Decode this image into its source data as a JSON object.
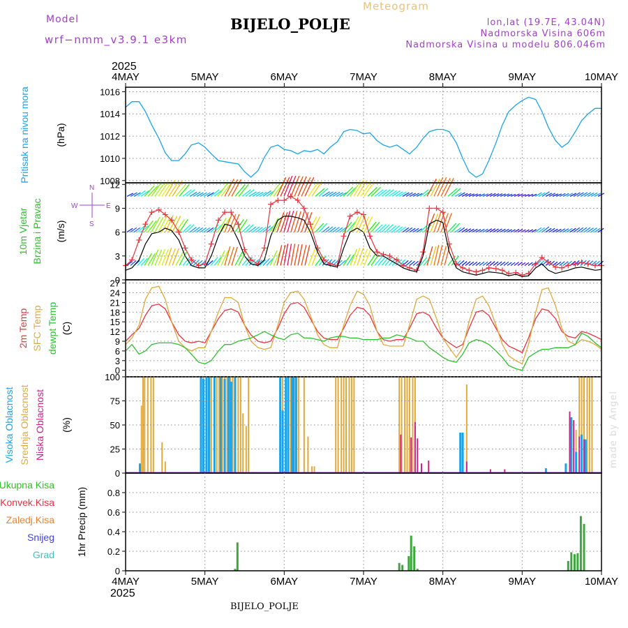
{
  "header": {
    "title": "BIJELO_POLJE",
    "model_label": "Model",
    "model_name": "wrf−nmm_v3.9.1  e3km",
    "meteogram_label": "Meteogram",
    "lonlat": "lon,lat (19.7E, 43.04N)",
    "altitude": "Nadmorska Visina 606m",
    "model_altitude": "Nadmorska Visina u modelu 806.046m"
  },
  "footer": {
    "station": "BIJELO_POLJE",
    "credit": "made by Angel"
  },
  "colors": {
    "pressure": "#1aa3e8",
    "wind_speed": "#000000",
    "gust": "#e8323c",
    "temp2m": "#e8323c",
    "sfc_temp": "#e0a93a",
    "dewpoint": "#2cc02c",
    "high_cloud": "#1aa3e8",
    "mid_cloud": "#e0a93a",
    "low_cloud": "#d0208c",
    "total_precip": "#3ca83c",
    "snow": "#4040e0",
    "grid": "#8a8a8a"
  },
  "x_axis": {
    "top_year": "2025",
    "bottom_year": "2025",
    "day_labels": [
      "4MAY",
      "5MAY",
      "6MAY",
      "7MAY",
      "8MAY",
      "9MAY",
      "10MAY"
    ]
  },
  "chart_data": [
    {
      "type": "line",
      "id": "pressure",
      "ylabel_lines": [
        "Pritisak na nivou mora"
      ],
      "unit": "(hPa)",
      "ylim": [
        1007.8,
        1016.4
      ],
      "yticks": [
        1008,
        1010,
        1012,
        1014,
        1016
      ],
      "x_days": [
        0,
        0.08,
        0.17,
        0.25,
        0.33,
        0.42,
        0.5,
        0.58,
        0.67,
        0.75,
        0.83,
        0.92,
        1,
        1.08,
        1.17,
        1.25,
        1.33,
        1.42,
        1.5,
        1.58,
        1.67,
        1.75,
        1.83,
        1.92,
        2,
        2.08,
        2.17,
        2.25,
        2.33,
        2.42,
        2.5,
        2.58,
        2.67,
        2.75,
        2.83,
        2.92,
        3,
        3.08,
        3.17,
        3.25,
        3.33,
        3.42,
        3.5,
        3.58,
        3.67,
        3.75,
        3.83,
        3.92,
        4,
        4.08,
        4.17,
        4.25,
        4.33,
        4.42,
        4.5,
        4.58,
        4.67,
        4.75,
        4.83,
        4.92,
        5,
        5.08,
        5.17,
        5.25,
        5.33,
        5.42,
        5.5,
        5.58,
        5.67,
        5.75,
        5.83,
        5.92,
        6
      ],
      "values": [
        1014.6,
        1015.1,
        1015.1,
        1014.2,
        1013.0,
        1011.8,
        1010.5,
        1009.8,
        1009.8,
        1010.4,
        1011.2,
        1011.4,
        1011.0,
        1010.4,
        1009.8,
        1009.7,
        1009.6,
        1009.5,
        1008.8,
        1008.3,
        1008.9,
        1010.1,
        1011.0,
        1011.2,
        1010.8,
        1010.7,
        1010.4,
        1010.7,
        1010.6,
        1010.8,
        1010.4,
        1011.0,
        1011.5,
        1012.4,
        1012.6,
        1012.5,
        1012.2,
        1012.3,
        1011.6,
        1011.2,
        1011.0,
        1011.2,
        1010.8,
        1010.4,
        1011.0,
        1011.8,
        1012.4,
        1012.6,
        1012.6,
        1012.4,
        1011.4,
        1010.0,
        1008.8,
        1008.3,
        1008.6,
        1009.8,
        1011.4,
        1013.0,
        1014.2,
        1014.8,
        1015.2,
        1015.5,
        1015.3,
        1014.2,
        1012.8,
        1011.6,
        1011.0,
        1011.4,
        1012.4,
        1013.4,
        1014.0,
        1014.5,
        1014.5
      ]
    },
    {
      "type": "line",
      "id": "wind",
      "ylabel_lines": [
        "10m Vjetar",
        "Brzina i Pravac"
      ],
      "unit": "(m/s)",
      "ylim": [
        0,
        12.2
      ],
      "yticks": [
        0,
        3,
        6,
        9,
        12
      ],
      "compass": {
        "n": "N",
        "s": "S",
        "e": "E",
        "w": "W"
      },
      "x_days": [
        0,
        0.08,
        0.17,
        0.25,
        0.33,
        0.42,
        0.5,
        0.58,
        0.67,
        0.75,
        0.83,
        0.92,
        1,
        1.08,
        1.17,
        1.25,
        1.33,
        1.42,
        1.5,
        1.58,
        1.67,
        1.75,
        1.83,
        1.92,
        2,
        2.08,
        2.17,
        2.25,
        2.33,
        2.42,
        2.5,
        2.58,
        2.67,
        2.75,
        2.83,
        2.92,
        3,
        3.08,
        3.17,
        3.25,
        3.33,
        3.42,
        3.5,
        3.58,
        3.67,
        3.75,
        3.83,
        3.92,
        4,
        4.08,
        4.17,
        4.25,
        4.33,
        4.42,
        4.5,
        4.58,
        4.67,
        4.75,
        4.83,
        4.92,
        5,
        5.08,
        5.17,
        5.25,
        5.33,
        5.42,
        5.5,
        5.58,
        5.67,
        5.75,
        5.83,
        5.92,
        6
      ],
      "series": [
        {
          "name": "wind speed",
          "values": [
            1.2,
            1.5,
            2.5,
            4.5,
            5.8,
            6.0,
            6.5,
            6.2,
            5.0,
            3.0,
            1.8,
            1.5,
            1.5,
            3.0,
            5.5,
            7.0,
            6.8,
            5.0,
            3.0,
            2.0,
            1.8,
            2.5,
            5.5,
            7.5,
            8.0,
            8.0,
            7.8,
            7.5,
            6.0,
            3.5,
            2.0,
            1.8,
            1.6,
            4.0,
            6.0,
            6.5,
            6.0,
            4.0,
            3.0,
            3.0,
            2.5,
            2.0,
            1.5,
            1.2,
            1.0,
            3.0,
            7.0,
            7.5,
            7.2,
            3.5,
            1.5,
            1.0,
            0.8,
            0.6,
            0.8,
            1.0,
            0.9,
            0.8,
            0.5,
            0.7,
            0.4,
            0.5,
            1.5,
            2.0,
            1.2,
            0.8,
            1.0,
            1.2,
            1.5,
            1.6,
            1.4,
            1.2,
            1.3
          ]
        },
        {
          "name": "gust",
          "values": [
            1.8,
            2.5,
            5.0,
            7.0,
            8.5,
            8.8,
            8.2,
            7.5,
            6.0,
            4.0,
            2.5,
            1.8,
            2.0,
            4.5,
            7.5,
            8.5,
            8.5,
            7.0,
            3.8,
            2.5,
            2.0,
            4.0,
            9.5,
            10.0,
            10.0,
            10.5,
            10.0,
            9.0,
            7.0,
            4.0,
            2.5,
            2.0,
            1.8,
            5.5,
            8.0,
            8.5,
            8.2,
            5.5,
            3.5,
            3.2,
            3.0,
            2.5,
            1.8,
            1.5,
            1.2,
            3.5,
            9.0,
            9.0,
            8.5,
            4.5,
            2.0,
            1.5,
            1.2,
            1.0,
            1.2,
            1.5,
            1.4,
            1.2,
            0.8,
            0.9,
            0.6,
            0.8,
            2.0,
            2.8,
            2.2,
            1.6,
            1.5,
            1.8,
            2.0,
            2.2,
            2.0,
            1.8,
            1.8
          ]
        }
      ],
      "wind_barb_rows": [
        10.5,
        6.0,
        1.8
      ]
    },
    {
      "type": "line",
      "id": "temperature",
      "ylabel_lines": [
        "2m Temp",
        "SFC Temp",
        "dewpt Temp"
      ],
      "unit": "(C)",
      "ylim": [
        -2,
        28
      ],
      "yticks": [
        0,
        3,
        6,
        9,
        12,
        15,
        18,
        21,
        24,
        27
      ],
      "x_days": [
        0,
        0.08,
        0.17,
        0.25,
        0.33,
        0.42,
        0.5,
        0.58,
        0.67,
        0.75,
        0.83,
        0.92,
        1,
        1.08,
        1.17,
        1.25,
        1.33,
        1.42,
        1.5,
        1.58,
        1.67,
        1.75,
        1.83,
        1.92,
        2,
        2.08,
        2.17,
        2.25,
        2.33,
        2.42,
        2.5,
        2.58,
        2.67,
        2.75,
        2.83,
        2.92,
        3,
        3.08,
        3.17,
        3.25,
        3.33,
        3.42,
        3.5,
        3.58,
        3.67,
        3.75,
        3.83,
        3.92,
        4,
        4.08,
        4.17,
        4.25,
        4.33,
        4.42,
        4.5,
        4.58,
        4.67,
        4.75,
        4.83,
        4.92,
        5,
        5.08,
        5.17,
        5.25,
        5.33,
        5.42,
        5.5,
        5.58,
        5.67,
        5.75,
        5.83,
        5.92,
        6
      ],
      "series": [
        {
          "name": "2m Temp",
          "values": [
            9,
            11,
            13,
            17,
            20,
            20.5,
            19,
            15,
            11,
            9,
            8.5,
            9,
            8.5,
            12,
            16,
            18.5,
            19,
            18,
            14,
            11,
            9,
            8.5,
            9,
            13,
            17.5,
            20.5,
            21,
            19.5,
            16,
            12,
            10,
            9.5,
            9.5,
            13,
            17,
            19.5,
            19,
            17,
            12,
            9.5,
            9,
            9.5,
            9.5,
            13,
            17.5,
            18,
            17,
            13,
            10,
            8.5,
            7,
            8,
            13,
            18,
            18.5,
            17,
            13,
            9.5,
            7.5,
            6.5,
            5.5,
            10,
            16,
            19,
            18.5,
            16,
            12,
            10.5,
            10,
            12,
            11.5,
            10.5,
            9.5
          ]
        },
        {
          "name": "SFC Temp",
          "values": [
            8,
            10,
            14,
            22,
            25.5,
            26,
            22,
            15,
            9,
            7,
            6,
            7,
            7,
            12,
            18,
            22.5,
            22.5,
            21,
            14,
            9,
            7,
            6.5,
            7,
            14,
            21,
            24,
            24.5,
            22,
            17,
            11,
            8,
            7,
            7,
            14,
            20,
            24.5,
            23.5,
            20,
            12,
            8,
            7.5,
            7.5,
            7.5,
            14,
            22,
            23,
            22,
            16,
            10,
            7,
            4,
            7,
            15,
            22,
            23,
            20,
            14,
            8,
            4.5,
            3,
            2,
            8,
            18,
            25,
            25.5,
            20,
            13,
            9,
            8,
            9.5,
            9,
            8,
            6.5
          ]
        },
        {
          "name": "dewpt Temp",
          "values": [
            6,
            8,
            5,
            6,
            8,
            8.5,
            8.5,
            8.5,
            8,
            7,
            5,
            2.5,
            2,
            3,
            6,
            8,
            8,
            9,
            9.5,
            10,
            11,
            12,
            11,
            10,
            9.5,
            11,
            11.5,
            10,
            10,
            9.5,
            9,
            10,
            10.5,
            10.5,
            10,
            10,
            9.5,
            9.5,
            9.5,
            10,
            10,
            11,
            10.5,
            10,
            9,
            9,
            7,
            5.5,
            4,
            3,
            2.5,
            5,
            8.5,
            9.5,
            9,
            8,
            6,
            4,
            1.5,
            0.5,
            0,
            4,
            5.5,
            6.5,
            6.5,
            7,
            7,
            7,
            8,
            11.5,
            10.5,
            8.5,
            7
          ]
        }
      ]
    },
    {
      "type": "bar",
      "id": "cloud",
      "ylabel_lines": [
        "Visoka Oblacnost",
        "Srednja Oblacnost",
        "Niska Oblacnost"
      ],
      "unit": "(%)",
      "ylim": [
        0,
        100
      ],
      "yticks": [
        0,
        25,
        50,
        75,
        100
      ],
      "series": [
        {
          "name": "Srednja Oblacnost",
          "x_days": [
            0.2,
            0.22,
            0.24,
            0.28,
            0.32,
            0.35,
            0.46,
            0.5,
            0.95,
            0.98,
            1.02,
            1.06,
            1.08,
            1.12,
            1.15,
            1.18,
            1.22,
            1.25,
            1.28,
            1.32,
            1.35,
            1.42,
            1.45,
            1.48,
            1.52,
            1.55,
            1.95,
            1.98,
            2.02,
            2.05,
            2.08,
            2.12,
            2.15,
            2.18,
            2.25,
            2.3,
            2.35,
            2.38,
            2.65,
            2.68,
            2.72,
            2.75,
            2.78,
            2.82,
            2.85,
            2.88,
            3.45,
            3.48,
            3.52,
            3.55,
            3.58,
            3.62,
            3.65,
            4.25,
            4.3,
            5.62,
            5.68,
            5.72,
            5.75,
            5.78,
            5.82,
            5.85,
            5.88
          ],
          "values": [
            70,
            100,
            100,
            100,
            100,
            100,
            32,
            12,
            100,
            100,
            100,
            100,
            100,
            100,
            100,
            100,
            100,
            100,
            100,
            100,
            100,
            100,
            100,
            62,
            49,
            100,
            100,
            100,
            100,
            100,
            100,
            100,
            100,
            100,
            100,
            38,
            7,
            7,
            100,
            100,
            100,
            100,
            100,
            100,
            100,
            100,
            100,
            100,
            100,
            100,
            100,
            100,
            100,
            36,
            92,
            50,
            45,
            100,
            100,
            100,
            100,
            100,
            100
          ]
        },
        {
          "name": "Visoka Oblacnost",
          "x_days": [
            0.18,
            0.95,
            0.98,
            1.02,
            1.05,
            1.12,
            1.2,
            1.25,
            1.3,
            1.33,
            1.38,
            1.95,
            1.98,
            2.02,
            2.05,
            2.1,
            2.12,
            2.15,
            4.22,
            4.25,
            5.3,
            5.55,
            5.62,
            5.68,
            5.75,
            5.8
          ],
          "values": [
            10,
            100,
            98,
            100,
            100,
            100,
            100,
            98,
            100,
            95,
            100,
            100,
            65,
            100,
            100,
            100,
            100,
            100,
            42,
            42,
            5,
            10,
            58,
            22,
            40,
            35
          ]
        },
        {
          "name": "Niska Oblacnost",
          "x_days": [
            3.47,
            3.6,
            3.65,
            3.68,
            3.73,
            3.82,
            4.3,
            4.6,
            4.78,
            5.6,
            5.65,
            5.72,
            5.78
          ],
          "values": [
            40,
            37,
            53,
            36,
            10,
            13,
            12,
            4,
            4,
            64,
            55,
            38,
            35
          ]
        }
      ]
    },
    {
      "type": "bar",
      "id": "precip",
      "ylabel_lines": [
        "Ukupna Kisa",
        "Konvek.Kisa",
        "Zaledj.Kisa",
        "Snijeg",
        "Grad"
      ],
      "unit": "1hr Precip (mm)",
      "ylim": [
        0,
        1.0
      ],
      "yticks": [
        0,
        0.2,
        0.4,
        0.6,
        0.8
      ],
      "series": [
        {
          "name": "Ukupna Kisa",
          "x_days": [
            1.38,
            1.41,
            3.45,
            3.49,
            3.57,
            3.6,
            3.64,
            3.68,
            5.58,
            5.62,
            5.66,
            5.7,
            5.74,
            5.78
          ],
          "values": [
            0.02,
            0.29,
            0.08,
            0.06,
            0.15,
            0.36,
            0.25,
            0.02,
            0.1,
            0.19,
            0.17,
            0.18,
            0.56,
            0.48
          ]
        },
        {
          "name": "Snijeg",
          "x_days": [],
          "values": []
        }
      ]
    }
  ]
}
